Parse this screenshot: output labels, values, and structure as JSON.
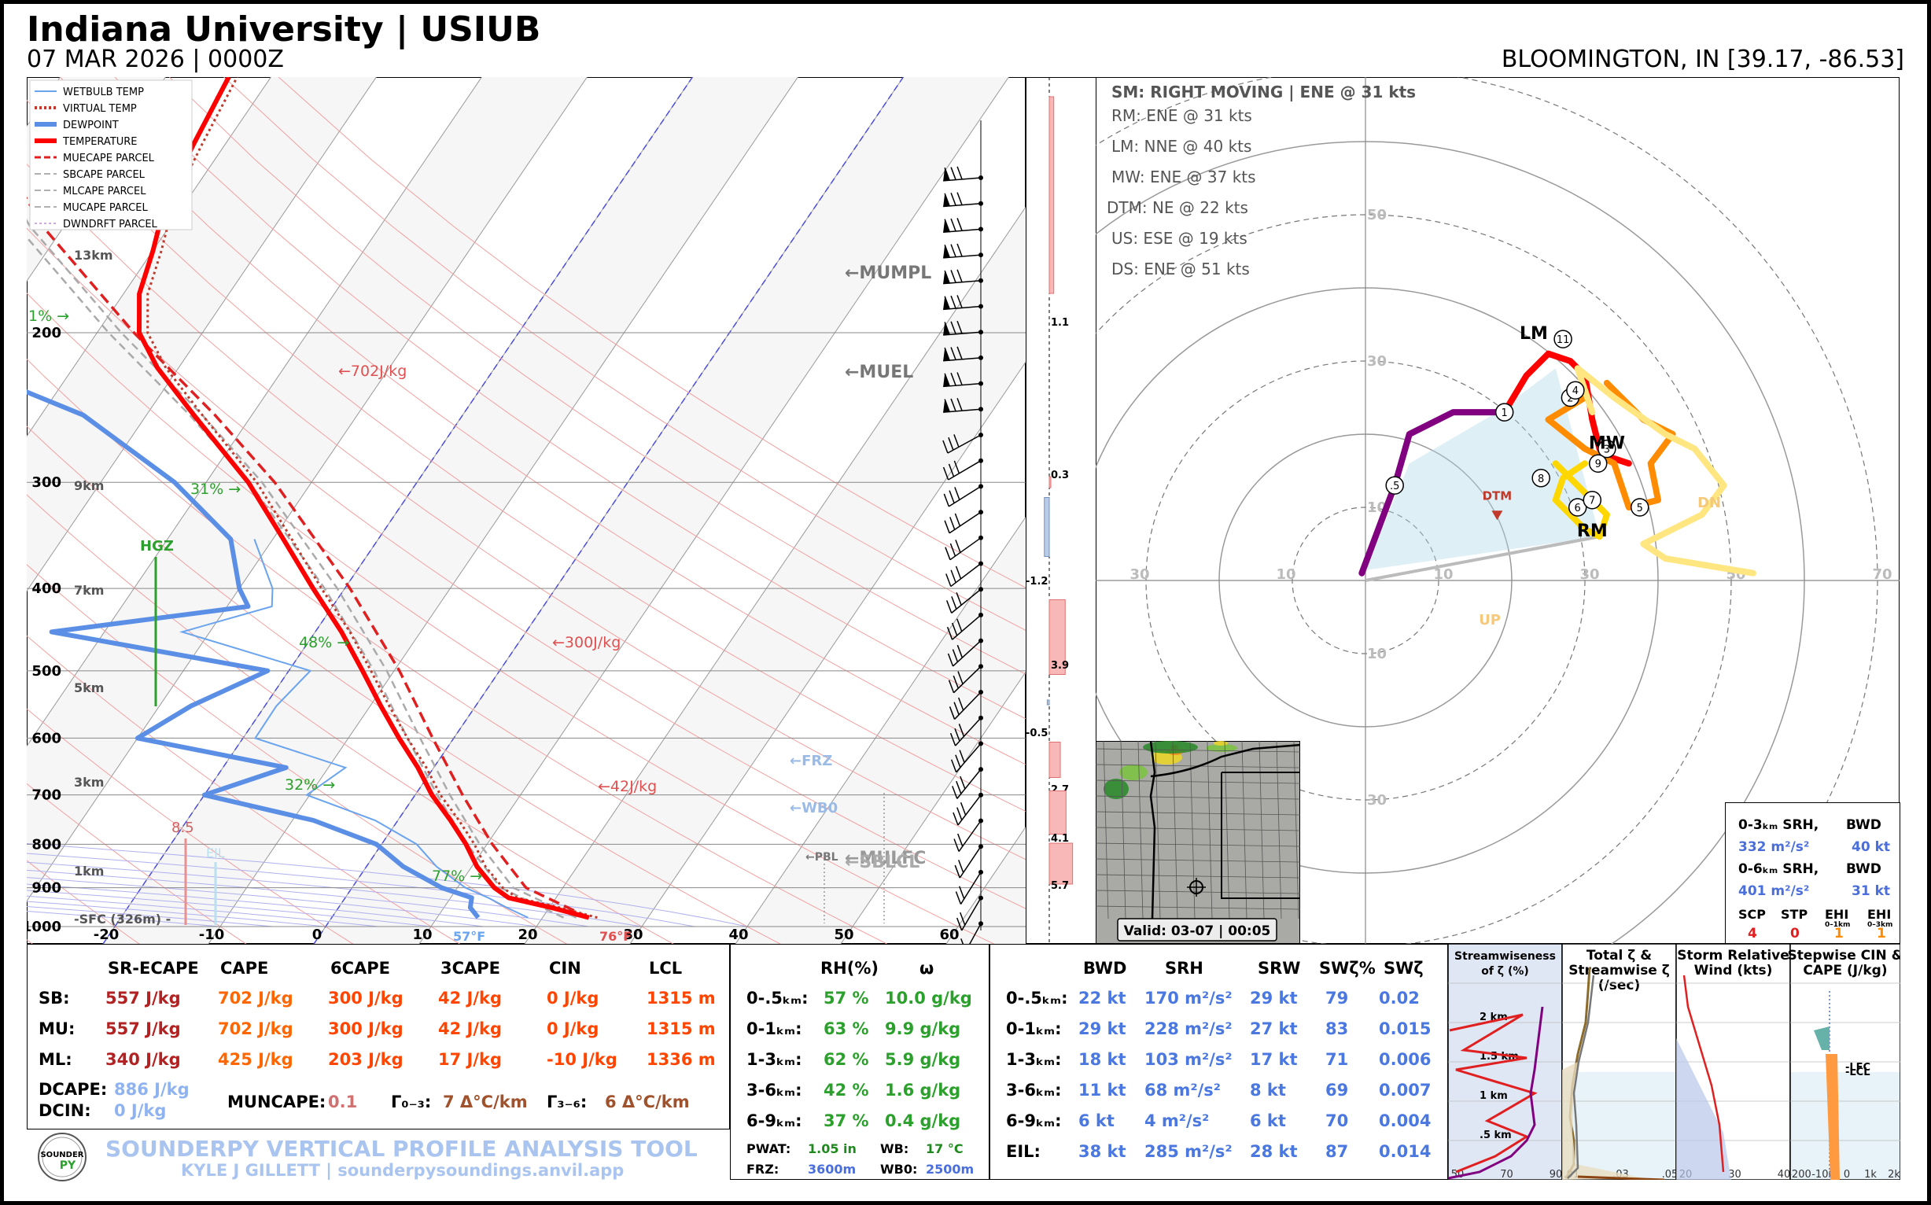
{
  "header": {
    "title": "Indiana University | USIUB",
    "subtitle": "07 MAR 2026 | 0000Z",
    "location": "BLOOMINGTON, IN [39.17, -86.53]"
  },
  "skewt": {
    "legend": [
      {
        "label": "WETBULB TEMP",
        "color": "#6aa3ee",
        "style": "solid",
        "w": 2
      },
      {
        "label": "VIRTUAL TEMP",
        "color": "#c0392b",
        "style": "dotted",
        "w": 4
      },
      {
        "label": "DEWPOINT",
        "color": "#5b8fe6",
        "style": "solid",
        "w": 6
      },
      {
        "label": "TEMPERATURE",
        "color": "#ff0000",
        "style": "solid",
        "w": 6
      },
      {
        "label": "MUECAPE PARCEL",
        "color": "#e02020",
        "style": "dashed",
        "w": 3
      },
      {
        "label": "SBCAPE PARCEL",
        "color": "#b0b0b0",
        "style": "dashed",
        "w": 2
      },
      {
        "label": "MLCAPE PARCEL",
        "color": "#b0b0b0",
        "style": "dashed",
        "w": 2
      },
      {
        "label": "MUCAPE PARCEL",
        "color": "#b0b0b0",
        "style": "dashed",
        "w": 2
      },
      {
        "label": "DWNDRFT PARCEL",
        "color": "#9b59b6",
        "style": "dotted",
        "w": 1
      }
    ],
    "x_ticks": [
      "-20",
      "-10",
      "0",
      "10",
      "20",
      "30",
      "40",
      "50",
      "60"
    ],
    "p_ticks": [
      "200",
      "300",
      "400",
      "500",
      "600",
      "700",
      "800",
      "900",
      "1000"
    ],
    "height_labels": [
      "13km",
      "9km",
      "7km",
      "5km",
      "3km",
      "1km"
    ],
    "sfc_label": "-SFC (326m) -",
    "rh_labels": [
      "1% →",
      "31% →",
      "48% →",
      "32% →",
      "77% →"
    ],
    "cape_labels": [
      "←702J/kg",
      "←300J/kg",
      "←42J/kg"
    ],
    "level_labels": [
      "←MUMPL",
      "←MUEL",
      "←FRZ",
      "←WB0",
      "←PBL",
      "←MULFC",
      "←SBLCL"
    ],
    "hgz_label": "HGZ",
    "lapse_value": "8.5",
    "eil_label": "EIL",
    "sfc_dew": "57°F",
    "sfc_temp": "76°F",
    "colors": {
      "temp": "#ff0000",
      "dew": "#5b8fe6",
      "wetbulb": "#6aa3ee",
      "hgz": "#2ca02c",
      "rh": "#2ca02c",
      "cape": "#e05050"
    }
  },
  "vort_bars": {
    "labels": [
      "1.1",
      "0.3",
      "-1.2",
      "3.9",
      "-0.5",
      "2.7",
      "4.1",
      "5.7"
    ],
    "values": [
      1.1,
      0.3,
      -1.2,
      3.9,
      -0.5,
      2.7,
      4.1,
      5.7
    ]
  },
  "hodograph": {
    "storm_motion_title": "SM: RIGHT MOVING | ENE @ 31 kts",
    "motions": [
      "RM: ENE @ 31 kts",
      "LM: NNE @ 40 kts",
      "MW: ENE @ 37 kts",
      "DTM: NE @ 22 kts",
      "US: ESE @ 19 kts",
      "DS: ENE @ 51 kts"
    ],
    "ring_labels": [
      "10",
      "30",
      "50",
      "70"
    ],
    "axis_labels": [
      "30",
      "10",
      "10",
      "30",
      "50",
      "70"
    ],
    "vert_labels": [
      "50",
      "30",
      "10",
      "10",
      "30"
    ],
    "points": [
      {
        "label": "LM"
      },
      {
        "label": "MW"
      },
      {
        "label": "RM"
      },
      {
        "label": "DTM"
      },
      {
        "label": "DN"
      },
      {
        "label": "UP"
      }
    ],
    "markers": [
      ".5",
      "1",
      "2",
      "3",
      "4",
      "5",
      "6",
      "7",
      "8",
      "9",
      "11"
    ],
    "colors": {
      "purple": "#800080",
      "red": "#ff0000",
      "orange": "#ff8c00",
      "yellow": "#ffd700",
      "pale": "#ffe680",
      "shade": "#add8e6"
    }
  },
  "radar": {
    "valid": "Valid: 03-07 | 00:05"
  },
  "srh_box": {
    "rows": [
      {
        "label": "0-3ₖₘ SRH,",
        "label2": "BWD",
        "srh": "332 m²/s²",
        "bwd": "40 kt"
      },
      {
        "label": "0-6ₖₘ SRH,",
        "label2": "BWD",
        "srh": "401 m²/s²",
        "bwd": "31 kt"
      }
    ],
    "indices": [
      {
        "name": "SCP",
        "value": "4"
      },
      {
        "name": "STP",
        "value": "0"
      },
      {
        "name": "EHI",
        "sub": "0–1km",
        "value": "1"
      },
      {
        "name": "EHI",
        "sub": "0–3km",
        "value": "1"
      }
    ]
  },
  "thermo_table": {
    "headers": [
      "SR-ECAPE",
      "CAPE",
      "6CAPE",
      "3CAPE",
      "CIN",
      "LCL"
    ],
    "rows": [
      {
        "name": "SB:",
        "vals": [
          "557 J/kg",
          "702 J/kg",
          "300 J/kg",
          "42 J/kg",
          "0 J/kg",
          "1315 m"
        ]
      },
      {
        "name": "MU:",
        "vals": [
          "557 J/kg",
          "702 J/kg",
          "300 J/kg",
          "42 J/kg",
          "0 J/kg",
          "1315 m"
        ]
      },
      {
        "name": "ML:",
        "vals": [
          "340 J/kg",
          "425 J/kg",
          "203 J/kg",
          "17 J/kg",
          "-10 J/kg",
          "1336 m"
        ]
      }
    ],
    "dcape_label": "DCAPE:",
    "dcape": "886 J/kg",
    "dcin_label": "DCIN:",
    "dcin": "0 J/kg",
    "muncape_label": "MUNCAPE:",
    "muncape": "0.1",
    "lr03_label": "Γ₀₋₃:",
    "lr03": "7 Δ°C/km",
    "lr36_label": "Γ₃₋₆:",
    "lr36": "6 Δ°C/km",
    "footer_title": "SOUNDERPY VERTICAL PROFILE ANALYSIS TOOL",
    "footer_sub": "KYLE J GILLETT | sounderpysoundings.anvil.app",
    "logo_text": "SOUNDER"
  },
  "moisture_table": {
    "headers": [
      "RH(%)",
      "ω"
    ],
    "rows": [
      {
        "name": "0-.5ₖₘ:",
        "rh": "57 %",
        "w": "10.0 g/kg"
      },
      {
        "name": "0-1ₖₘ:",
        "rh": "63 %",
        "w": "9.9 g/kg"
      },
      {
        "name": "1-3ₖₘ:",
        "rh": "62 %",
        "w": "5.9 g/kg"
      },
      {
        "name": "3-6ₖₘ:",
        "rh": "42 %",
        "w": "1.6 g/kg"
      },
      {
        "name": "6-9ₖₘ:",
        "rh": "37 %",
        "w": "0.4 g/kg"
      }
    ],
    "pwat_label": "PWAT:",
    "pwat": "1.05 in",
    "wb_label": "WB:",
    "wb": "17 °C",
    "frz_label": "FRZ:",
    "frz": "3600m",
    "wb0_label": "WB0:",
    "wb0": "2500m"
  },
  "kinematic_table": {
    "headers": [
      "BWD",
      "SRH",
      "SRW",
      "SWζ%",
      "SWζ"
    ],
    "rows": [
      {
        "name": "0-.5ₖₘ:",
        "vals": [
          "22 kt",
          "170 m²/s²",
          "29 kt",
          "79",
          "0.02"
        ]
      },
      {
        "name": "0-1ₖₘ:",
        "vals": [
          "29 kt",
          "228 m²/s²",
          "27 kt",
          "83",
          "0.015"
        ]
      },
      {
        "name": "1-3ₖₘ:",
        "vals": [
          "18 kt",
          "103 m²/s²",
          "17 kt",
          "71",
          "0.006"
        ]
      },
      {
        "name": "3-6ₖₘ:",
        "vals": [
          "11 kt",
          "68 m²/s²",
          "8 kt",
          "69",
          "0.007"
        ]
      },
      {
        "name": "6-9ₖₘ:",
        "vals": [
          "6 kt",
          "4 m²/s²",
          "6 kt",
          "70",
          "0.004"
        ]
      },
      {
        "name": "EIL:",
        "vals": [
          "38 kt",
          "285 m²/s²",
          "28 kt",
          "87",
          "0.014"
        ]
      }
    ]
  },
  "mini_panels": [
    {
      "title": "Streamwiseness of ζ (%)",
      "heights": [
        "2 km",
        "1.5 km",
        "1 km",
        ".5 km"
      ],
      "xticks": [
        "50",
        "70",
        "90"
      ]
    },
    {
      "title": "Total ζ & Streamwise ζ (/sec)",
      "xticks": [
        ".01",
        ".03",
        ".05"
      ]
    },
    {
      "title": "Storm Relative Wind (kts)",
      "xticks": [
        "20",
        "30",
        "40"
      ]
    },
    {
      "title": "Stepwise CIN & CAPE (J/kg)",
      "xticks": [
        "-200",
        "-100",
        "0",
        "1k",
        "2k"
      ],
      "lfc": "-LFC",
      "lcl": "-LCL"
    }
  ],
  "chart_data": [
    {
      "type": "line",
      "title": "",
      "xlabel": "",
      "ylabel": "",
      "xlim": [
        -20,
        60
      ],
      "ylim": [
        1000,
        100
      ],
      "x_scale": "skewed temperature (°C)",
      "y_scale": "log pressure (hPa)",
      "series": [
        {
          "name": "TEMPERATURE",
          "p": [
            976,
            950,
            925,
            900,
            850,
            800,
            750,
            700,
            650,
            600,
            550,
            500,
            450,
            400,
            350,
            300,
            250,
            220,
            200,
            180,
            160,
            140,
            120,
            100
          ],
          "t": [
            24.4,
            20.2,
            15.5,
            13.5,
            10.5,
            8.0,
            5.0,
            1.6,
            -1.5,
            -5.2,
            -9.0,
            -13.0,
            -17.5,
            -23.0,
            -29.0,
            -36.0,
            -45.5,
            -52.0,
            -56.0,
            -58.5,
            -60.0,
            -62.0,
            -63.0,
            -64.0
          ]
        },
        {
          "name": "DEWPOINT",
          "p": [
            976,
            950,
            925,
            900,
            850,
            800,
            750,
            700,
            650,
            600,
            550,
            500,
            450,
            420,
            400,
            350,
            300,
            250,
            220,
            200,
            180,
            160,
            140,
            120,
            100
          ],
          "t": [
            13.9,
            12.5,
            12.0,
            8.5,
            3.5,
            -0.5,
            -8.0,
            -20.0,
            -14.0,
            -30.0,
            -27.0,
            -22.0,
            -45.0,
            -28.0,
            -30.0,
            -34.0,
            -43.0,
            -56.0,
            -70.0,
            -78.0,
            -76.0,
            -80.0,
            -82.0,
            -84.0,
            -85.0
          ]
        },
        {
          "name": "MUECAPE PARCEL",
          "p": [
            976,
            900,
            800,
            700,
            600,
            500,
            400,
            300,
            250,
            200,
            150,
            100
          ],
          "t": [
            24.4,
            16.5,
            10.5,
            4.5,
            -2.0,
            -9.5,
            -19.5,
            -33.5,
            -43.5,
            -56.5,
            -72.0,
            -90.0
          ]
        }
      ]
    },
    {
      "type": "scatter",
      "title": "",
      "xlabel": "",
      "ylabel": "",
      "xlim": [
        -30,
        70
      ],
      "ylim": [
        -30,
        50
      ],
      "series": [
        {
          "name": "0-3km",
          "u": [
            -0.5,
            5,
            12,
            18,
            22,
            26,
            29
          ],
          "v": [
            1,
            8,
            18,
            19,
            20,
            22,
            25
          ]
        },
        {
          "name": "3-6km",
          "u": [
            29,
            31,
            33,
            35,
            37,
            36,
            38
          ],
          "v": [
            25,
            29,
            28,
            24,
            21,
            18,
            15
          ]
        }
      ],
      "storm_motions": {
        "RM": [
          32,
          6
        ],
        "LM": [
          23,
          33
        ],
        "MW": [
          34,
          18
        ],
        "DTM": [
          18,
          10
        ],
        "DN": [
          54,
          12
        ],
        "UP": [
          17,
          -5
        ]
      }
    }
  ]
}
